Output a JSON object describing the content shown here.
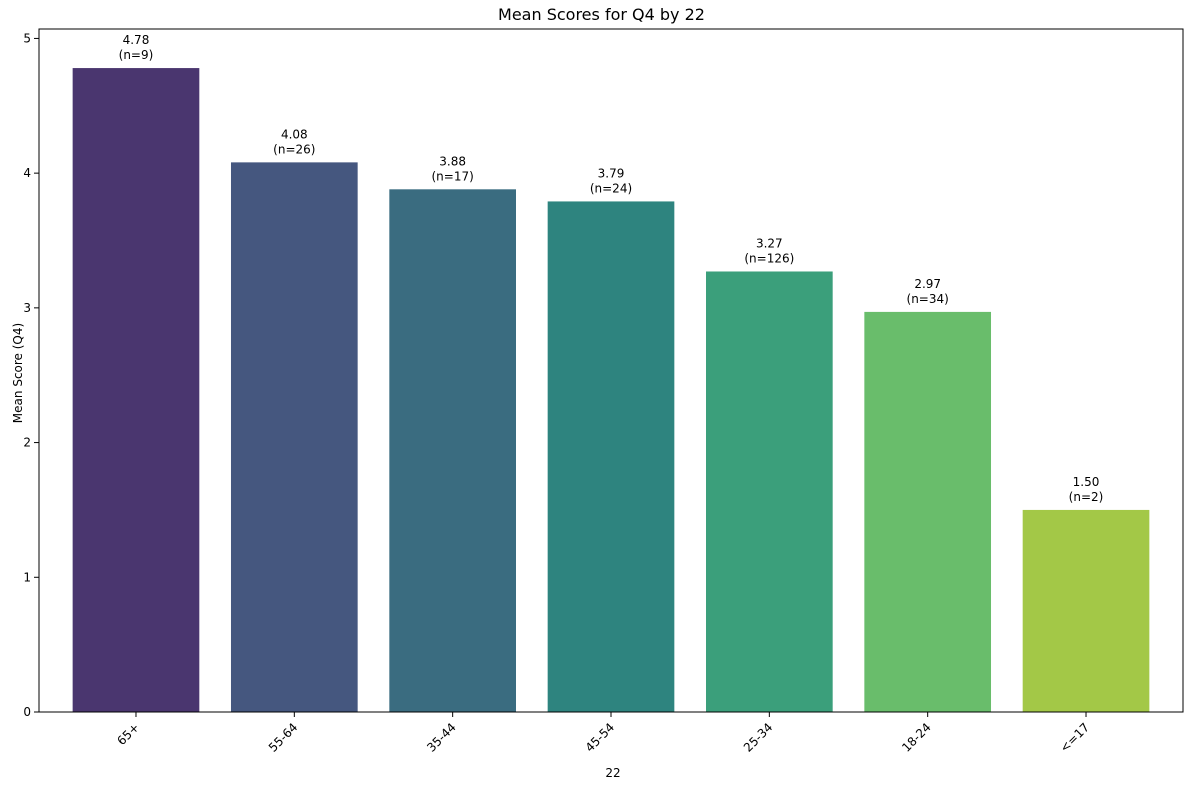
{
  "chart_data": {
    "type": "bar",
    "title": "Mean Scores for Q4 by 22",
    "xlabel": "22",
    "ylabel": "Mean Score (Q4)",
    "categories": [
      "65+",
      "55-64",
      "35-44",
      "45-54",
      "25-34",
      "18-24",
      "<=17"
    ],
    "values": [
      4.78,
      4.08,
      3.88,
      3.79,
      3.27,
      2.97,
      1.5
    ],
    "value_labels": [
      "4.78",
      "4.08",
      "3.88",
      "3.79",
      "3.27",
      "2.97",
      "1.50"
    ],
    "counts": [
      "(n=9)",
      "(n=26)",
      "(n=17)",
      "(n=24)",
      "(n=126)",
      "(n=34)",
      "(n=2)"
    ],
    "colors": [
      "#4a366f",
      "#45577f",
      "#3a6c80",
      "#2e847f",
      "#3b9f7b",
      "#69bd6b",
      "#a3c847"
    ],
    "ylim": [
      0,
      5
    ],
    "yticks": [
      "0",
      "1",
      "2",
      "3",
      "4",
      "5"
    ],
    "grid": false,
    "legend": false
  }
}
